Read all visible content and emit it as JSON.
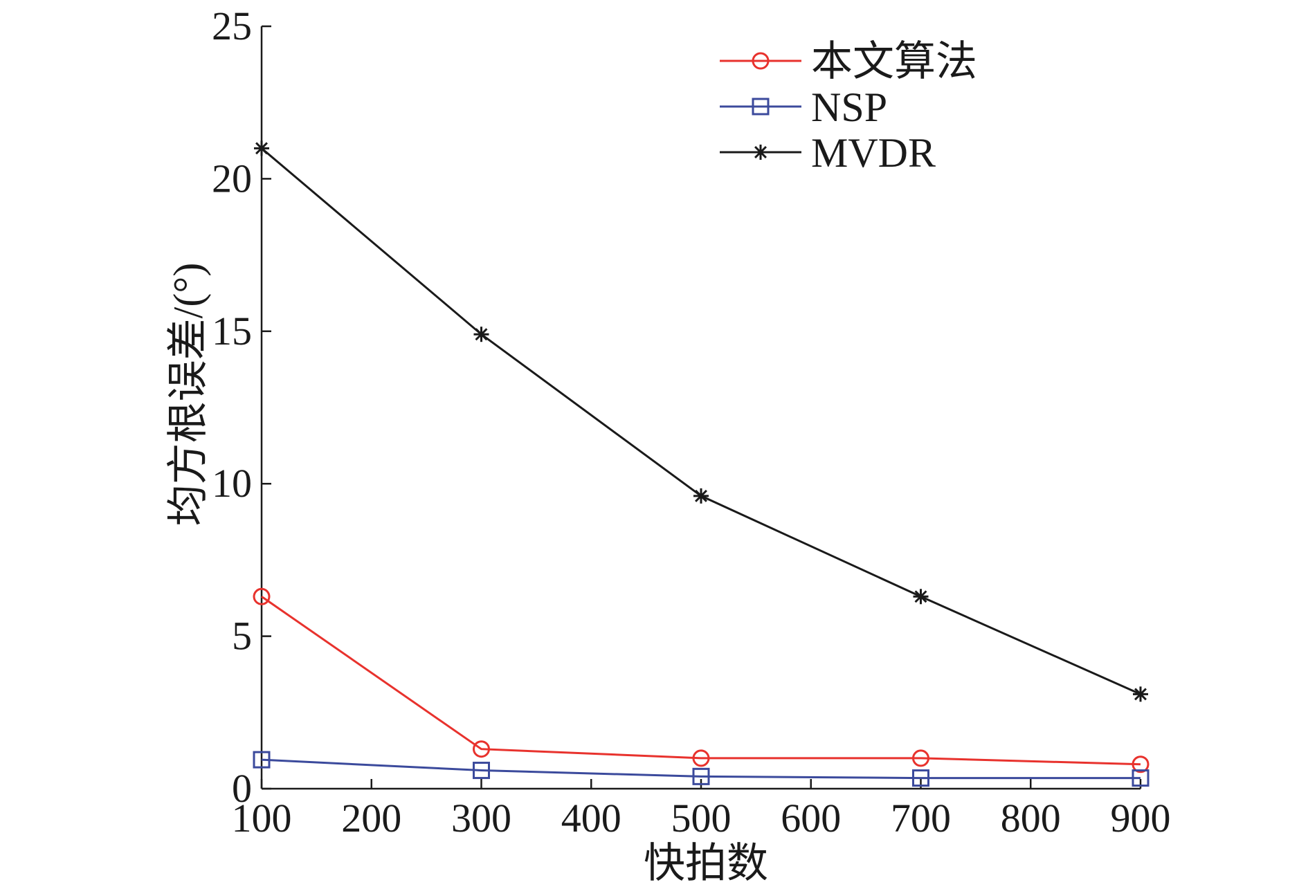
{
  "chart_data": {
    "type": "line",
    "title": "",
    "xlabel": "快拍数",
    "ylabel": "均方根误差/(°)",
    "xlim": [
      100,
      900
    ],
    "ylim": [
      0,
      25
    ],
    "grid": false,
    "legend_position": "top-right",
    "x": [
      100,
      300,
      500,
      700,
      900
    ],
    "xticks": [
      100,
      200,
      300,
      400,
      500,
      600,
      700,
      800,
      900
    ],
    "yticks": [
      0,
      5,
      10,
      15,
      20,
      25
    ],
    "series": [
      {
        "name": "本文算法",
        "color": "#e8322d",
        "marker": "circle",
        "values": [
          6.3,
          1.3,
          1.0,
          1.0,
          0.8
        ]
      },
      {
        "name": "NSP",
        "color": "#3b4a9c",
        "marker": "square",
        "values": [
          0.95,
          0.6,
          0.4,
          0.35,
          0.35
        ]
      },
      {
        "name": "MVDR",
        "color": "#1a1a1a",
        "marker": "asterisk",
        "values": [
          21.0,
          14.9,
          9.6,
          6.3,
          3.1
        ]
      }
    ]
  }
}
